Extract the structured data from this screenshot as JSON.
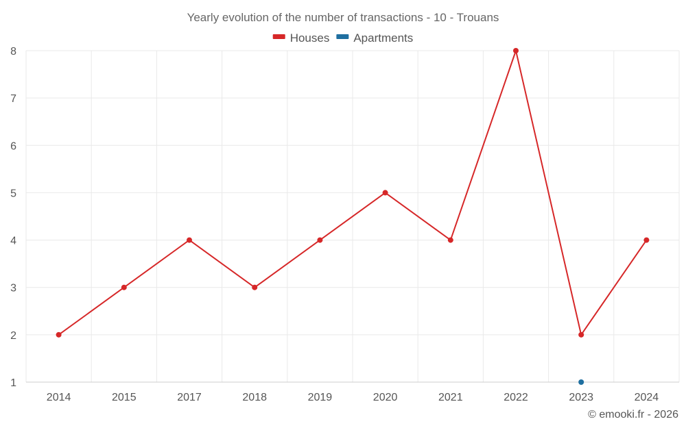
{
  "chart_data": {
    "type": "line",
    "title": "Yearly evolution of the number of transactions - 10 - Trouans",
    "categories": [
      "2014",
      "2015",
      "2017",
      "2018",
      "2019",
      "2020",
      "2021",
      "2022",
      "2023",
      "2024"
    ],
    "series": [
      {
        "name": "Houses",
        "color": "#d62728",
        "values": [
          2,
          3,
          4,
          3,
          4,
          5,
          4,
          8,
          2,
          4
        ]
      },
      {
        "name": "Apartments",
        "color": "#1f6fa0",
        "values": [
          null,
          null,
          null,
          null,
          null,
          null,
          null,
          null,
          1,
          null
        ]
      }
    ],
    "ylim": [
      1,
      8
    ],
    "yticks": [
      1,
      2,
      3,
      4,
      5,
      6,
      7,
      8
    ],
    "xlabel": "",
    "ylabel": "",
    "grid": true,
    "legend": "top-center"
  },
  "credit": "© emooki.fr - 2026"
}
